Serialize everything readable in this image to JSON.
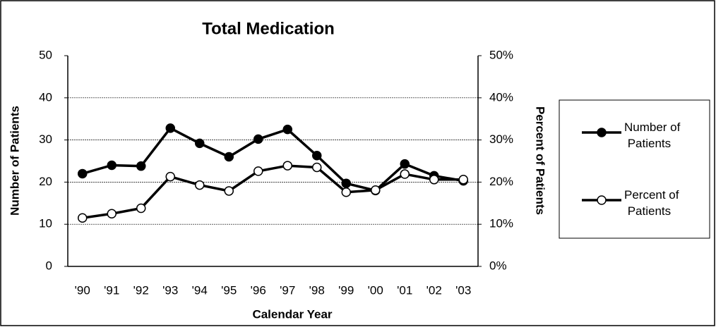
{
  "chart_data": {
    "type": "line",
    "title": "Total Medication",
    "x_label": "Calendar Year",
    "y_label": "Number of Patients",
    "y2_label": "Percent of Patients",
    "categories": [
      "'90",
      "'91",
      "'92",
      "'93",
      "'94",
      "'95",
      "'96",
      "'97",
      "'98",
      "'99",
      "'00",
      "'01",
      "'02",
      "'03"
    ],
    "series": [
      {
        "name": "Number of Patients",
        "color": "#000000",
        "marker": "filled",
        "values": [
          22,
          24,
          23.8,
          32.8,
          29.2,
          26,
          30.2,
          32.5,
          26.3,
          19.7,
          18,
          24.3,
          21.5,
          20.3
        ]
      },
      {
        "name": "Percent of Patients",
        "color": "#000000",
        "marker": "open",
        "axis": "y2",
        "values": [
          11.5,
          12.5,
          13.8,
          21.3,
          19.3,
          17.9,
          22.6,
          23.9,
          23.5,
          17.6,
          18.1,
          21.9,
          20.6,
          20.6
        ]
      }
    ],
    "ylim": [
      0,
      50
    ],
    "yticks": [
      0,
      10,
      20,
      30,
      40,
      50
    ],
    "y2lim": [
      0,
      50
    ],
    "y2ticks": [
      {
        "value": 0,
        "label": "0%"
      },
      {
        "value": 10,
        "label": "10%"
      },
      {
        "value": 20,
        "label": "20%"
      },
      {
        "value": 30,
        "label": "30%"
      },
      {
        "value": 40,
        "label": "40%"
      },
      {
        "value": 50,
        "label": "50%"
      }
    ],
    "grid": true,
    "legend": "right"
  }
}
